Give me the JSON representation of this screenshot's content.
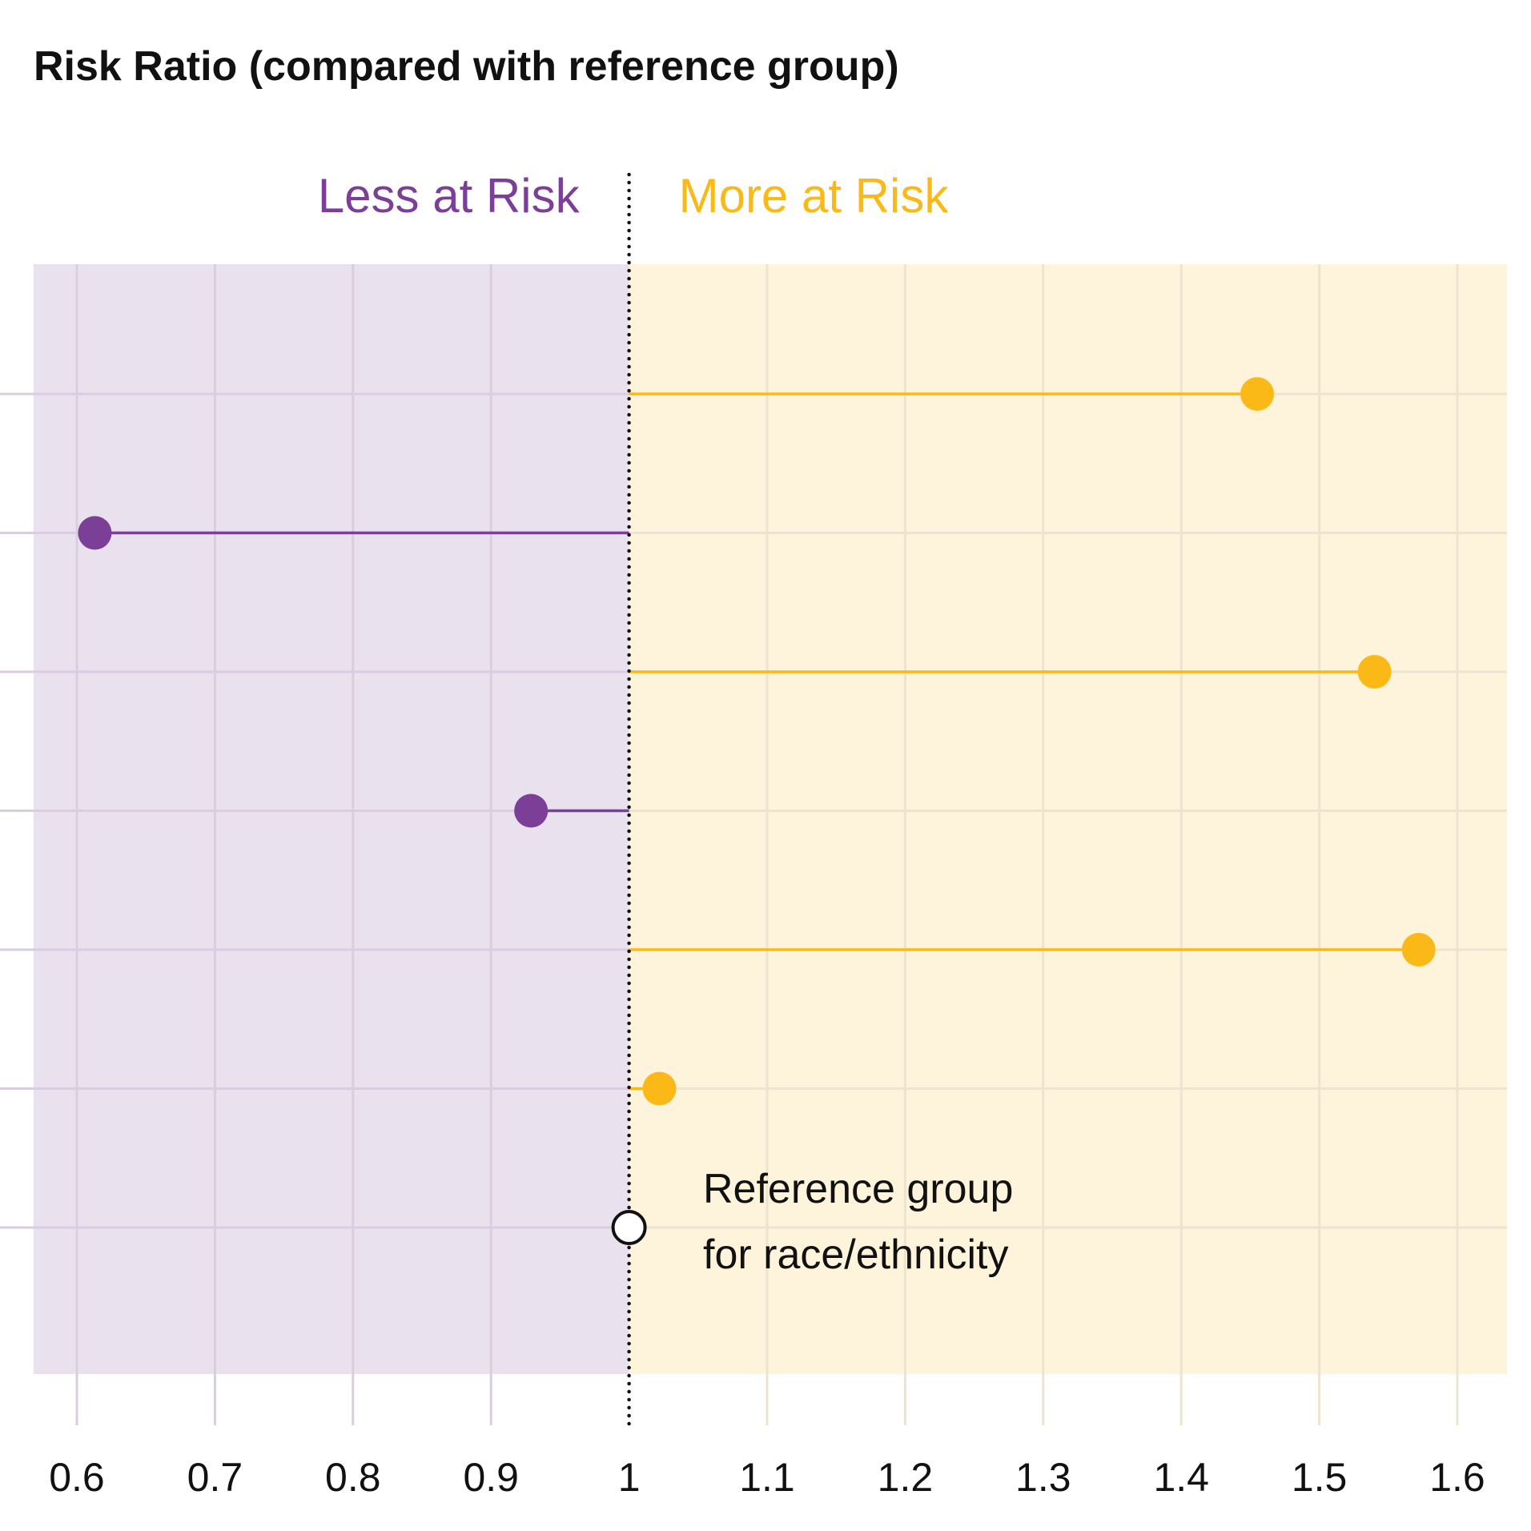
{
  "chart_data": {
    "type": "dot-lollipop",
    "title": "Risk Ratio (compared with reference group)",
    "xlabel": "",
    "ylabel": "",
    "xlim": [
      0.565,
      1.635
    ],
    "reference_value": 1,
    "x_ticks": [
      0.6,
      0.7,
      0.8,
      0.9,
      1,
      1.1,
      1.2,
      1.3,
      1.4,
      1.5,
      1.6
    ],
    "x_tick_labels": [
      "0.6",
      "0.7",
      "0.8",
      "0.9",
      "1",
      "1.1",
      "1.2",
      "1.3",
      "1.4",
      "1.5",
      "1.6"
    ],
    "region_labels": {
      "less": "Less at Risk",
      "more": "More at Risk"
    },
    "points": [
      {
        "row": 1,
        "value": 1.455
      },
      {
        "row": 2,
        "value": 0.613
      },
      {
        "row": 3,
        "value": 1.54
      },
      {
        "row": 4,
        "value": 0.929
      },
      {
        "row": 5,
        "value": 1.572
      },
      {
        "row": 6,
        "value": 1.022
      },
      {
        "row": 7,
        "value": 1.0,
        "reference": true
      }
    ],
    "annotation": {
      "line1": "Reference group",
      "line2": "for race/ethnicity"
    },
    "colors": {
      "less": "#7b3f98",
      "more": "#fbb917",
      "less_bg": "#e9e1ee",
      "more_bg": "#fef4dc",
      "grid_less": "#d8cde1",
      "grid_more": "#ece4d0",
      "reference_fill": "#ffffff",
      "reference_stroke": "#111111"
    }
  }
}
